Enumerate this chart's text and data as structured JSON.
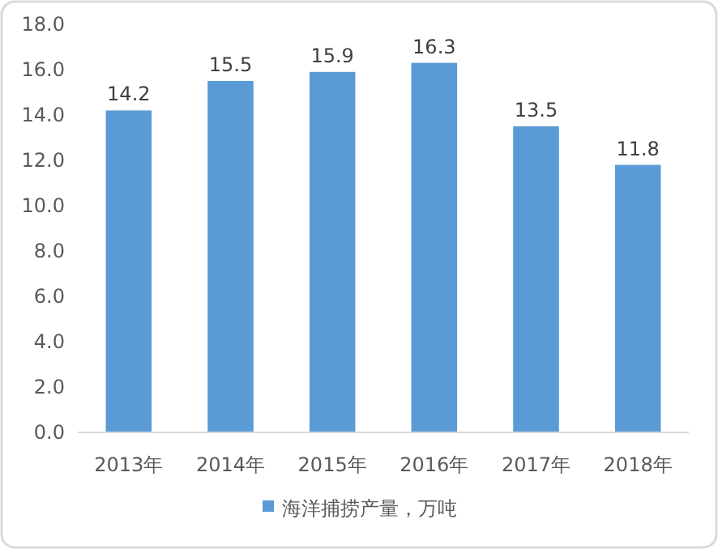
{
  "chart_data": {
    "type": "bar",
    "categories": [
      "2013年",
      "2014年",
      "2015年",
      "2016年",
      "2017年",
      "2018年"
    ],
    "series": [
      {
        "name": "海洋捕捞产量，万吨",
        "color": "#5b9bd5",
        "values": [
          14.2,
          15.5,
          15.9,
          16.3,
          13.5,
          11.8
        ]
      }
    ],
    "ylim": [
      0,
      18
    ],
    "yticks": [
      {
        "value": 0,
        "label": "0.0"
      },
      {
        "value": 2,
        "label": "2.0"
      },
      {
        "value": 4,
        "label": "4.0"
      },
      {
        "value": 6,
        "label": "6.0"
      },
      {
        "value": 8,
        "label": "8.0"
      },
      {
        "value": 10,
        "label": "10.0"
      },
      {
        "value": 12,
        "label": "12.0"
      },
      {
        "value": 14,
        "label": "14.0"
      },
      {
        "value": 16,
        "label": "16.0"
      },
      {
        "value": 18,
        "label": "18.0"
      }
    ],
    "data_labels": true,
    "legend": "bottom"
  }
}
